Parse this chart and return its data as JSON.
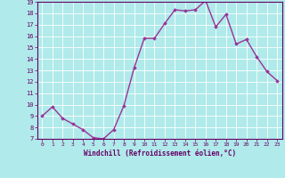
{
  "x": [
    0,
    1,
    2,
    3,
    4,
    5,
    6,
    7,
    8,
    9,
    10,
    11,
    12,
    13,
    14,
    15,
    16,
    17,
    18,
    19,
    20,
    21,
    22,
    23
  ],
  "y": [
    9.0,
    9.8,
    8.8,
    8.3,
    7.8,
    7.1,
    7.0,
    7.8,
    9.9,
    13.2,
    15.8,
    15.8,
    17.1,
    18.3,
    18.2,
    18.3,
    19.1,
    16.8,
    17.9,
    15.3,
    15.7,
    14.2,
    12.9,
    12.1
  ],
  "ylim": [
    7,
    19
  ],
  "yticks": [
    7,
    8,
    9,
    10,
    11,
    12,
    13,
    14,
    15,
    16,
    17,
    18,
    19
  ],
  "xticks": [
    0,
    1,
    2,
    3,
    4,
    5,
    6,
    7,
    8,
    9,
    10,
    11,
    12,
    13,
    14,
    15,
    16,
    17,
    18,
    19,
    20,
    21,
    22,
    23
  ],
  "xlabel": "Windchill (Refroidissement éolien,°C)",
  "line_color": "#993399",
  "marker": "D",
  "marker_size": 1.8,
  "bg_color": "#b0eaea",
  "grid_color": "#ffffff",
  "axes_color": "#660066",
  "label_color": "#660066",
  "tick_color": "#660066",
  "line_width": 1.0
}
